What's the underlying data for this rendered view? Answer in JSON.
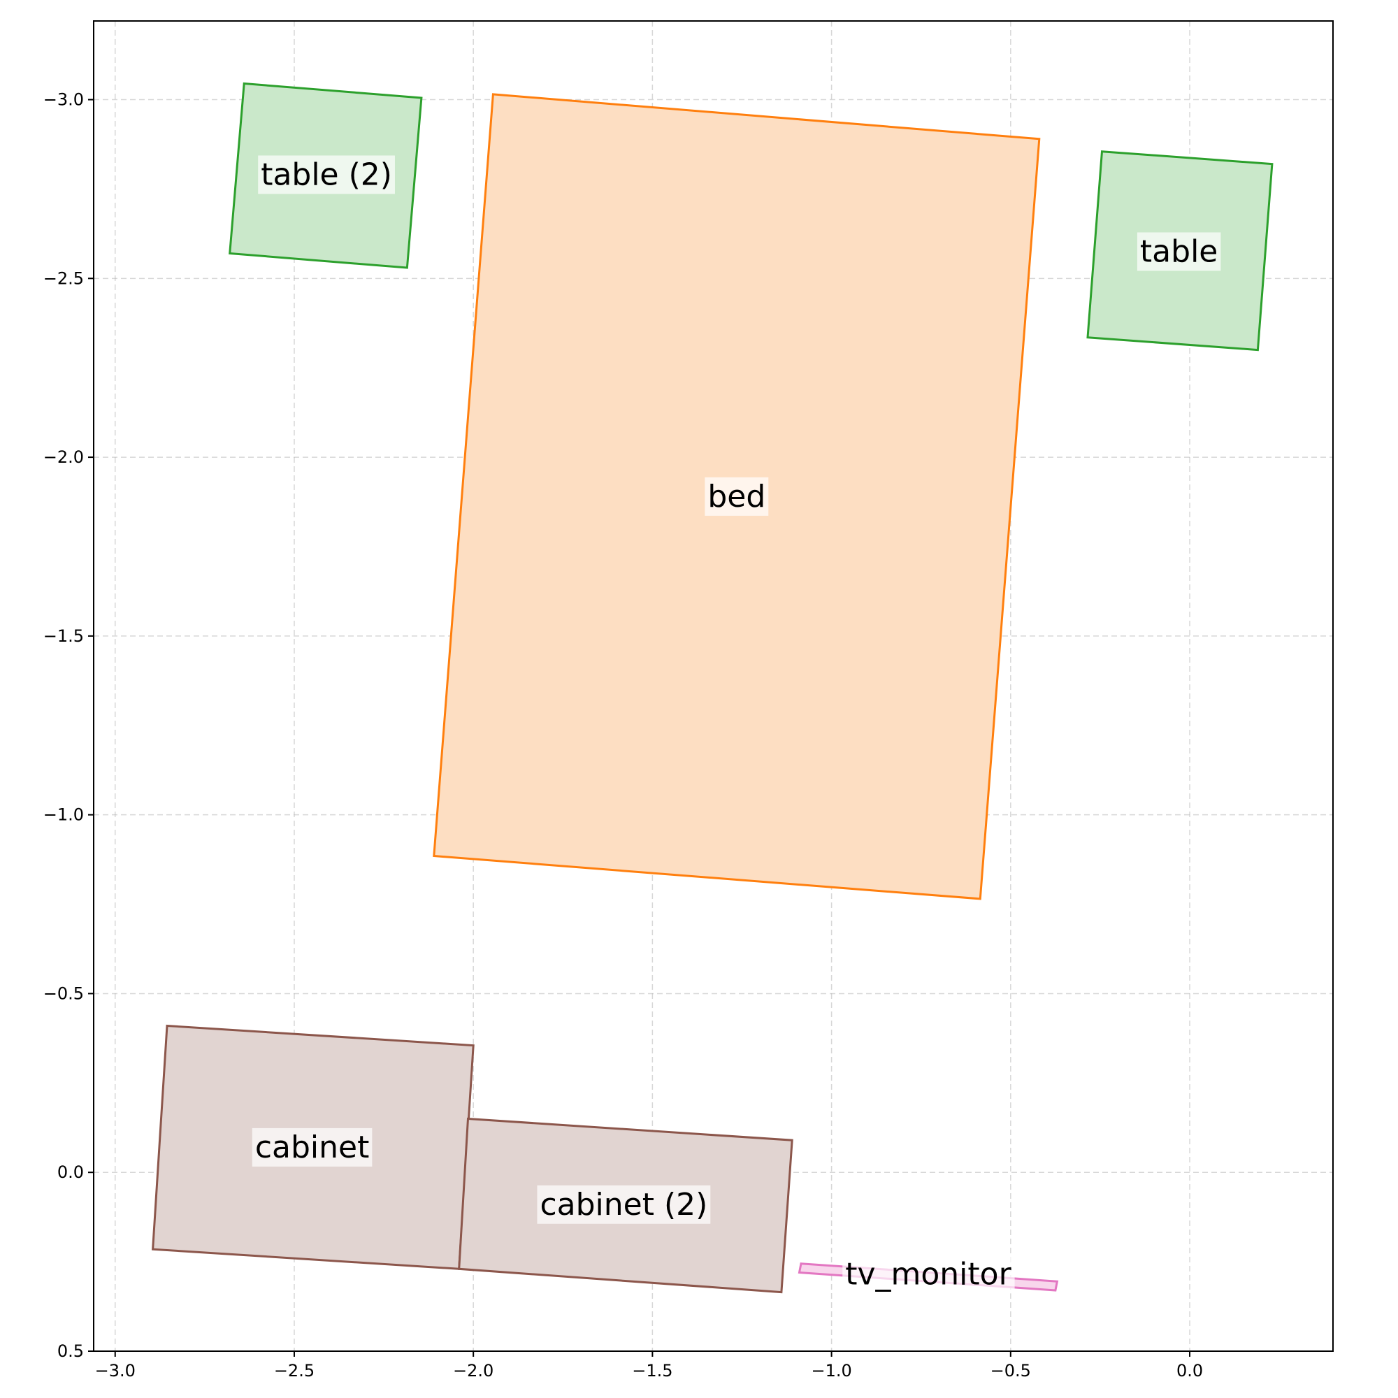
{
  "chart_data": {
    "type": "floor_plan",
    "xlim": [
      -3.06,
      0.4
    ],
    "ylim": [
      0.5,
      -3.22
    ],
    "y_inverted": true,
    "grid": true,
    "x_ticks": [
      {
        "value": -3.0,
        "label": "−3.0"
      },
      {
        "value": -2.5,
        "label": "−2.5"
      },
      {
        "value": -2.0,
        "label": "−2.0"
      },
      {
        "value": -1.5,
        "label": "−1.5"
      },
      {
        "value": -1.0,
        "label": "−1.0"
      },
      {
        "value": -0.5,
        "label": "−0.5"
      },
      {
        "value": 0.0,
        "label": "0.0"
      }
    ],
    "y_ticks": [
      {
        "value": -3.0,
        "label": "−3.0"
      },
      {
        "value": -2.5,
        "label": "−2.5"
      },
      {
        "value": -2.0,
        "label": "−2.0"
      },
      {
        "value": -1.5,
        "label": "−1.5"
      },
      {
        "value": -1.0,
        "label": "−1.0"
      },
      {
        "value": -0.5,
        "label": "−0.5"
      },
      {
        "value": 0.0,
        "label": "0.0"
      },
      {
        "value": 0.5,
        "label": "0.5"
      }
    ],
    "objects": [
      {
        "label": "table (2)",
        "category": "table",
        "stroke": "#2ca02c",
        "fill": "#cae8ca",
        "corners": [
          [
            -2.64,
            -3.045
          ],
          [
            -2.145,
            -3.005
          ],
          [
            -2.185,
            -2.53
          ],
          [
            -2.68,
            -2.57
          ]
        ],
        "label_at": [
          -2.41,
          -2.79
        ]
      },
      {
        "label": "bed",
        "category": "bed",
        "stroke": "#ff7f0e",
        "fill": "#fddec2",
        "corners": [
          [
            -1.945,
            -3.015
          ],
          [
            -0.42,
            -2.89
          ],
          [
            -0.585,
            -0.765
          ],
          [
            -2.11,
            -0.885
          ]
        ],
        "label_at": [
          -1.265,
          -1.89
        ]
      },
      {
        "label": "table",
        "category": "table",
        "stroke": "#2ca02c",
        "fill": "#cae8ca",
        "corners": [
          [
            -0.245,
            -2.855
          ],
          [
            0.23,
            -2.82
          ],
          [
            0.19,
            -2.3
          ],
          [
            -0.285,
            -2.335
          ]
        ],
        "label_at": [
          -0.03,
          -2.575
        ]
      },
      {
        "label": "cabinet",
        "category": "cabinet",
        "stroke": "#8c564b",
        "fill": "#e1d4d1",
        "corners": [
          [
            -2.855,
            -0.41
          ],
          [
            -2.0,
            -0.355
          ],
          [
            -2.04,
            0.27
          ],
          [
            -2.895,
            0.215
          ]
        ],
        "label_at": [
          -2.45,
          -0.07
        ]
      },
      {
        "label": "cabinet (2)",
        "category": "cabinet",
        "stroke": "#8c564b",
        "fill": "#e1d4d1",
        "corners": [
          [
            -2.015,
            -0.15
          ],
          [
            -1.11,
            -0.09
          ],
          [
            -1.14,
            0.335
          ],
          [
            -2.04,
            0.27
          ]
        ],
        "label_at": [
          -1.58,
          0.09
        ]
      },
      {
        "label": "tv_monitor",
        "category": "tv_monitor",
        "stroke": "#e377c2",
        "fill": "#f8d6ec",
        "corners": [
          [
            -1.085,
            0.255
          ],
          [
            -0.37,
            0.305
          ],
          [
            -0.375,
            0.33
          ],
          [
            -1.09,
            0.28
          ]
        ],
        "label_at": [
          -0.73,
          0.285
        ]
      }
    ]
  }
}
